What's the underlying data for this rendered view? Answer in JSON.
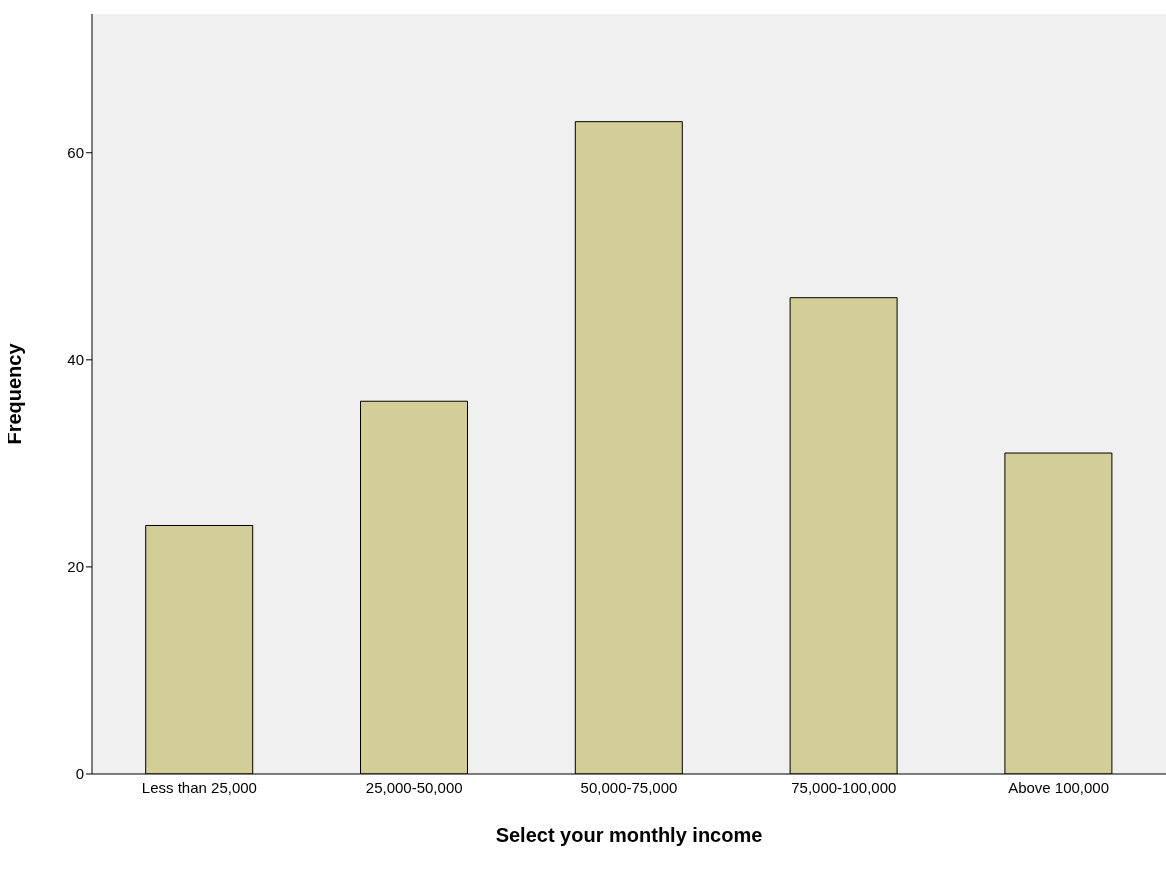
{
  "chart_data": {
    "type": "bar",
    "xlabel": "Select your monthly income",
    "ylabel": "Frequency",
    "categories": [
      "Less than 25,000",
      "25,000-50,000",
      "50,000-75,000",
      "75,000-100,000",
      "Above 100,000"
    ],
    "values": [
      24,
      36,
      63,
      46,
      31
    ],
    "color": "#d3ce97",
    "ylim": [
      0,
      73.4
    ],
    "yticks": [
      0,
      20,
      40,
      60
    ],
    "grid": false
  }
}
